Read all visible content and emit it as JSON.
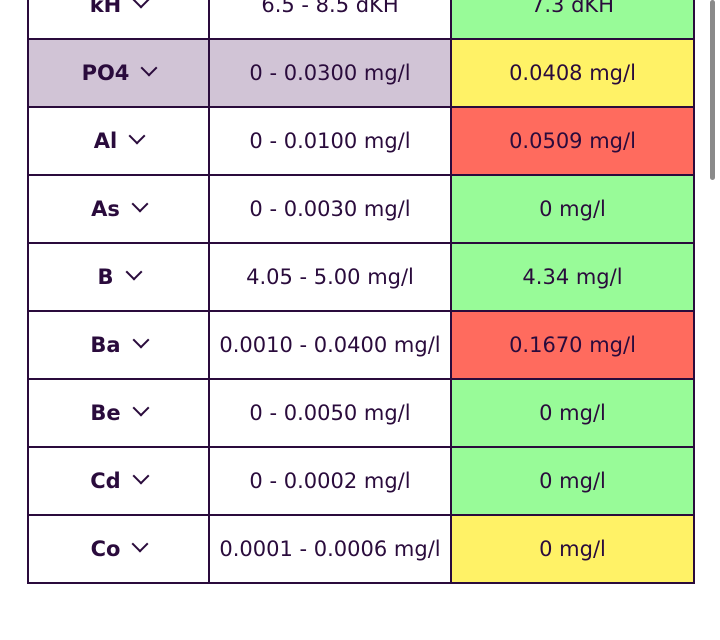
{
  "rows": [
    {
      "name": "kH",
      "range": "6.5 - 8.5 dKH",
      "value": "7.3 dKH",
      "status": "green"
    },
    {
      "name": "PO4",
      "range": "0 - 0.0300 mg/l",
      "value": "0.0408 mg/l",
      "status": "yellow",
      "selected": true
    },
    {
      "name": "Al",
      "range": "0 - 0.0100 mg/l",
      "value": "0.0509 mg/l",
      "status": "red"
    },
    {
      "name": "As",
      "range": "0 - 0.0030 mg/l",
      "value": "0 mg/l",
      "status": "green"
    },
    {
      "name": "B",
      "range": "4.05 - 5.00 mg/l",
      "value": "4.34 mg/l",
      "status": "green"
    },
    {
      "name": "Ba",
      "range": "0.0010 - 0.0400 mg/l",
      "value": "0.1670 mg/l",
      "status": "red"
    },
    {
      "name": "Be",
      "range": "0 - 0.0050 mg/l",
      "value": "0 mg/l",
      "status": "green"
    },
    {
      "name": "Cd",
      "range": "0 - 0.0002 mg/l",
      "value": "0 mg/l",
      "status": "green"
    },
    {
      "name": "Co",
      "range": "0.0001 - 0.0006 mg/l",
      "value": "0 mg/l",
      "status": "yellow"
    }
  ],
  "colors": {
    "green": "#98fb98",
    "yellow": "#fff266",
    "red": "#ff6b5e",
    "selected": "#d1c4d6",
    "text": "#2a0b3c"
  },
  "icons": {
    "expand": "chevron-down-icon"
  }
}
